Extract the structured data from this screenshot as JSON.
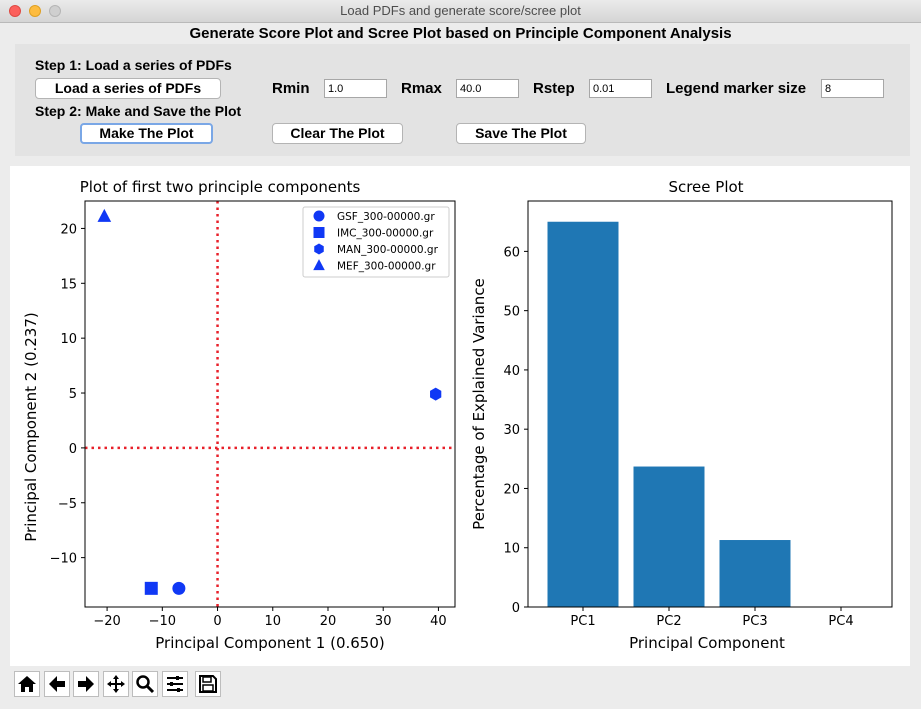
{
  "window": {
    "title": "Load PDFs and generate score/scree plot"
  },
  "heading": "Generate Score Plot and Scree Plot based on Principle Component Analysis",
  "controls": {
    "step1": "Step 1: Load a series of PDFs",
    "load_button": "Load a series of PDFs",
    "rmin_label": "Rmin",
    "rmin_value": "1.0",
    "rmax_label": "Rmax",
    "rmax_value": "40.0",
    "rstep_label": "Rstep",
    "rstep_value": "0.01",
    "marker_label": "Legend marker size",
    "marker_value": "8",
    "step2": "Step 2: Make and Save the Plot",
    "make_button": "Make The Plot",
    "clear_button": "Clear The Plot",
    "save_button": "Save The Plot"
  },
  "chart_data": [
    {
      "type": "scatter",
      "title": "Plot of first two principle components",
      "xlabel": "Principal Component 1 (0.650)",
      "ylabel": "Principal Component 2 (0.237)",
      "xlim": [
        -24,
        43
      ],
      "ylim": [
        -14.5,
        22.5
      ],
      "xticks": [
        -20,
        -10,
        0,
        10,
        20,
        30,
        40
      ],
      "yticks": [
        -10,
        -5,
        0,
        5,
        10,
        15,
        20
      ],
      "reference_lines": {
        "x": 0,
        "y": 0,
        "color": "#e8202a",
        "style": "dotted"
      },
      "legend_position": "top-right",
      "marker_color": "#1038f5",
      "series": [
        {
          "name": "GSF_300-00000.gr",
          "marker": "circle",
          "x": -7,
          "y": -12.8
        },
        {
          "name": "IMC_300-00000.gr",
          "marker": "square",
          "x": -12,
          "y": -12.8
        },
        {
          "name": "MAN_300-00000.gr",
          "marker": "hexagon",
          "x": 39.5,
          "y": 4.9
        },
        {
          "name": "MEF_300-00000.gr",
          "marker": "triangle",
          "x": -20.5,
          "y": 21.1
        }
      ]
    },
    {
      "type": "bar",
      "title": "Scree Plot",
      "xlabel": "Principal Component",
      "ylabel": "Percentage of Explained Variance",
      "categories": [
        "PC1",
        "PC2",
        "PC3",
        "PC4"
      ],
      "values": [
        65.0,
        23.7,
        11.3,
        0
      ],
      "ylim": [
        0,
        68.5
      ],
      "yticks": [
        0,
        10,
        20,
        30,
        40,
        50,
        60
      ],
      "bar_color": "#1f77b4"
    }
  ],
  "toolbar": [
    {
      "name": "home-icon"
    },
    {
      "name": "back-arrow-icon"
    },
    {
      "name": "forward-arrow-icon"
    },
    {
      "name": "pan-icon"
    },
    {
      "name": "zoom-icon"
    },
    {
      "name": "configure-subplots-icon"
    },
    {
      "name": "save-icon"
    }
  ]
}
